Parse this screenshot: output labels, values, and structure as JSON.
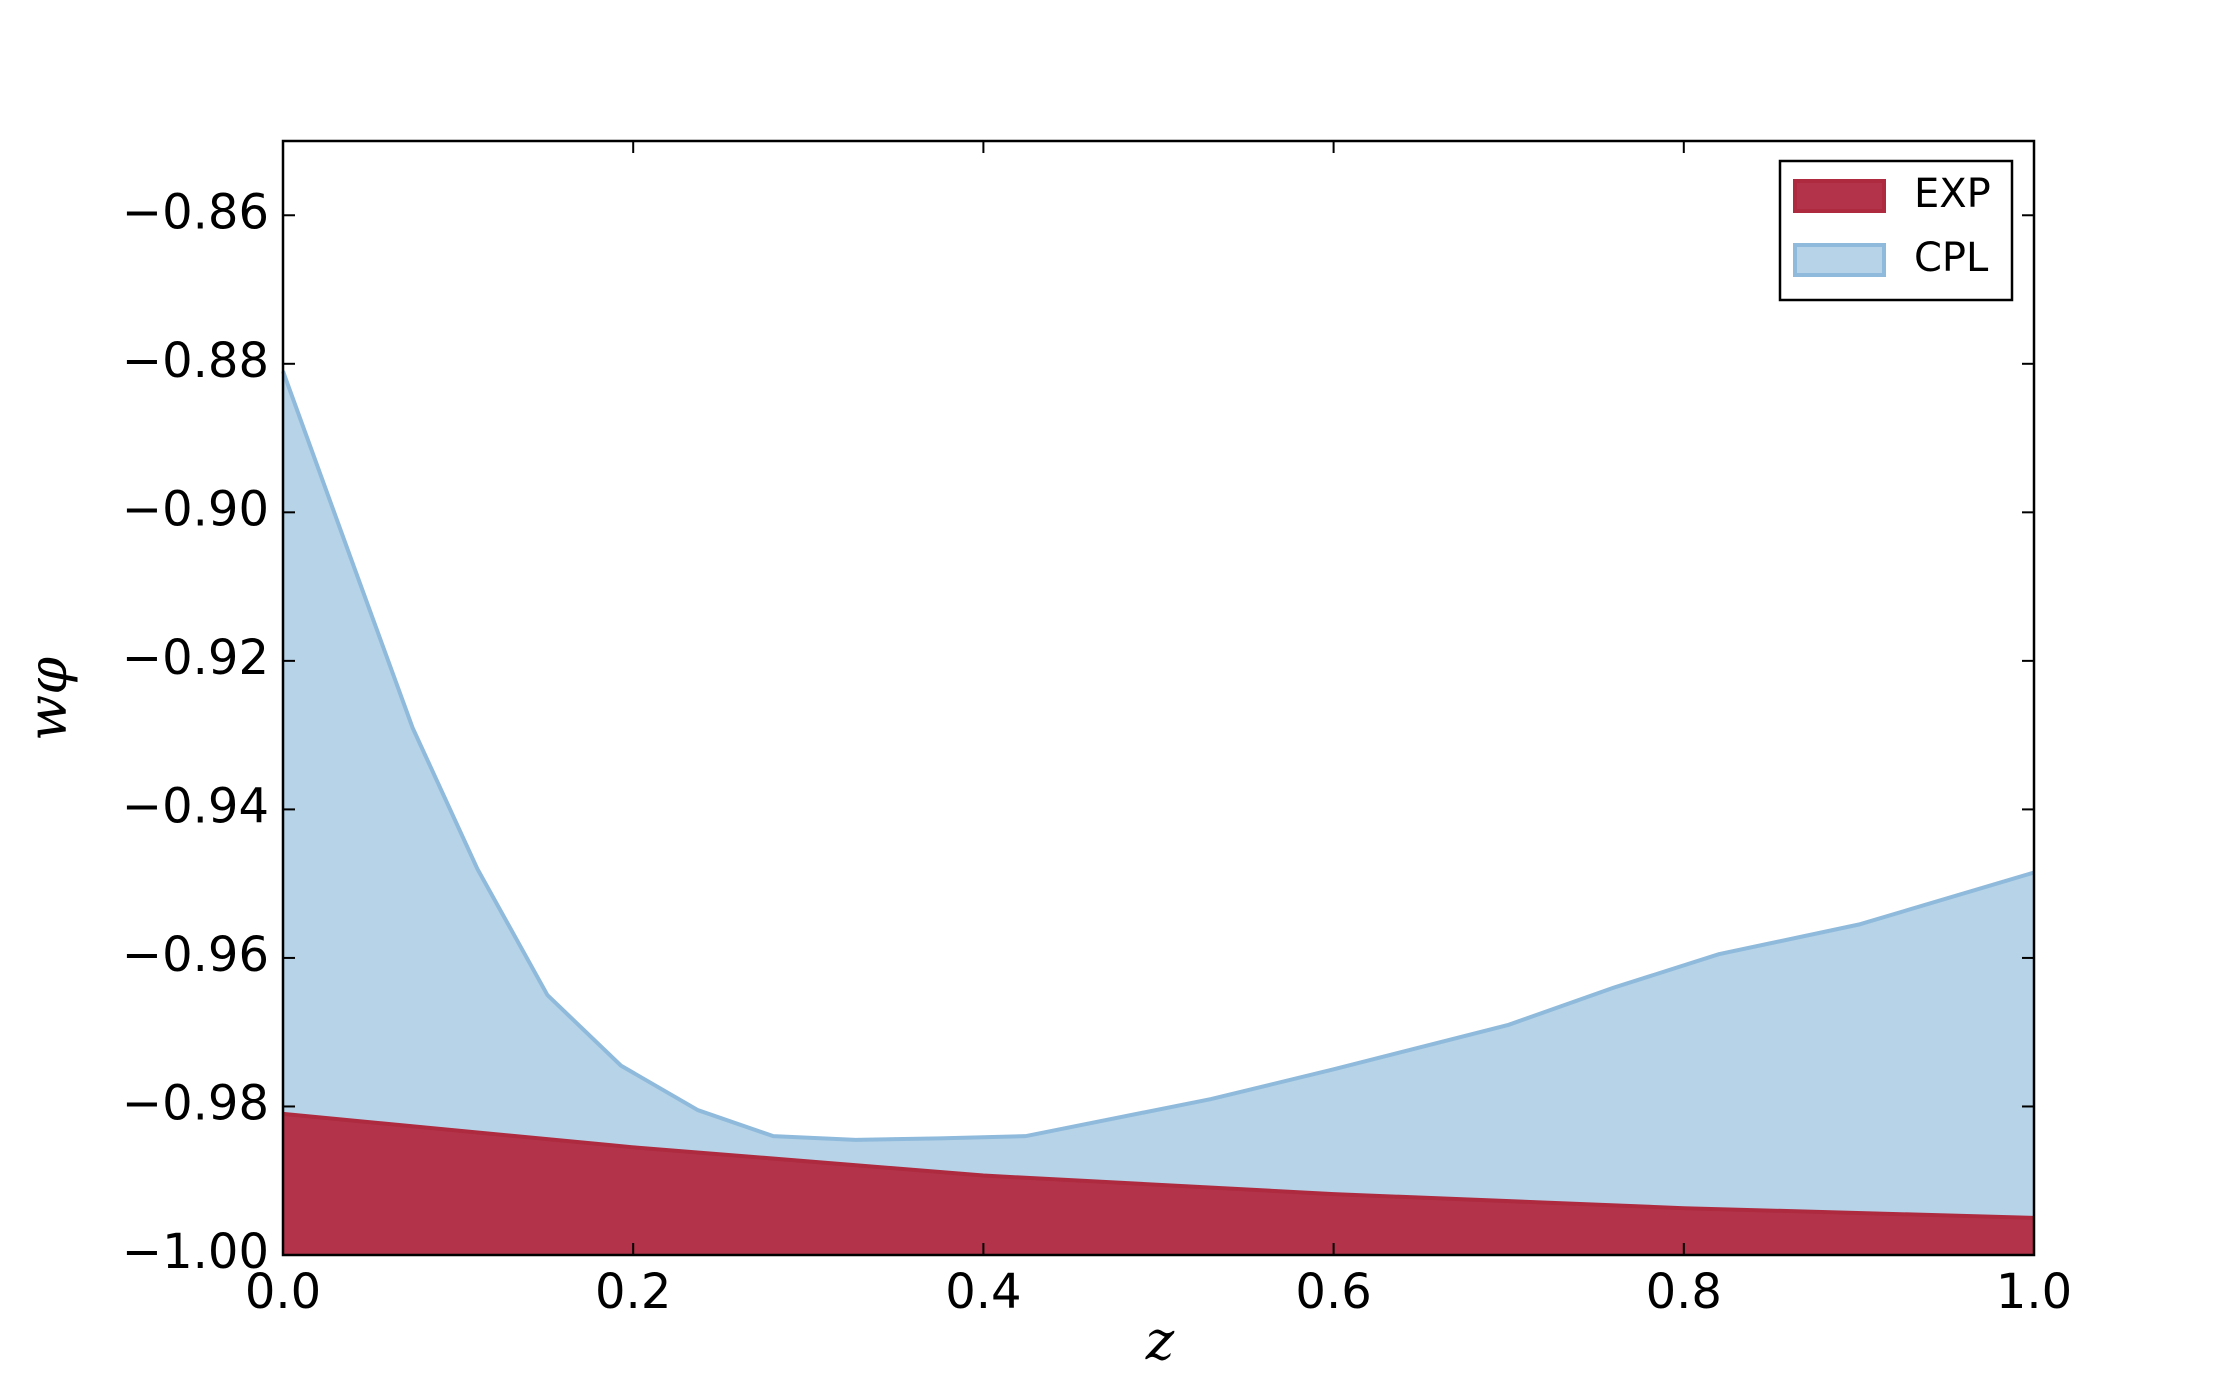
{
  "chart_data": {
    "type": "area",
    "x_label": "z",
    "y_label": "wφ",
    "xlim": [
      0.0,
      1.0
    ],
    "xticks": [
      {
        "value": 0.0,
        "label": "0.0"
      },
      0.2,
      0.4,
      0.6,
      0.8,
      {
        "value": 1.0,
        "label": "1.0"
      }
    ],
    "ylim": [
      -1.0,
      -0.85
    ],
    "yticks": [
      {
        "value": -1.0,
        "label": "−1.00"
      },
      {
        "value": -0.98,
        "label": "−0.98"
      },
      {
        "value": -0.96,
        "label": "−0.96"
      },
      {
        "value": -0.94,
        "label": "−0.94"
      },
      {
        "value": -0.92,
        "label": "−0.92"
      },
      {
        "value": -0.9,
        "label": "−0.90"
      },
      {
        "value": -0.88,
        "label": "−0.88"
      },
      {
        "value": -0.86,
        "label": "−0.86"
      }
    ],
    "legend": "upper right",
    "series": [
      {
        "name": "CPL",
        "color": "#b7d3e7",
        "edge": "#8fbadb",
        "x": [
          0.0,
          0.04,
          0.074,
          0.111,
          0.151,
          0.193,
          0.237,
          0.28,
          0.327,
          0.375,
          0.424,
          0.53,
          0.6,
          0.7,
          0.76,
          0.82,
          0.9,
          1.0
        ],
        "values": [
          -0.881,
          -0.907,
          -0.929,
          -0.948,
          -0.965,
          -0.9745,
          -0.9805,
          -0.984,
          -0.9845,
          -0.9843,
          -0.984,
          -0.979,
          -0.975,
          -0.969,
          -0.964,
          -0.9595,
          -0.9555,
          -0.9485
        ]
      },
      {
        "name": "EXP",
        "color": "#b3344a",
        "edge": "#ad2a3f",
        "x": [
          0.0,
          0.2,
          0.4,
          0.6,
          0.8,
          1.0
        ],
        "values": [
          -0.981,
          -0.9855,
          -0.9893,
          -0.9918,
          -0.9937,
          -0.995
        ]
      }
    ]
  }
}
